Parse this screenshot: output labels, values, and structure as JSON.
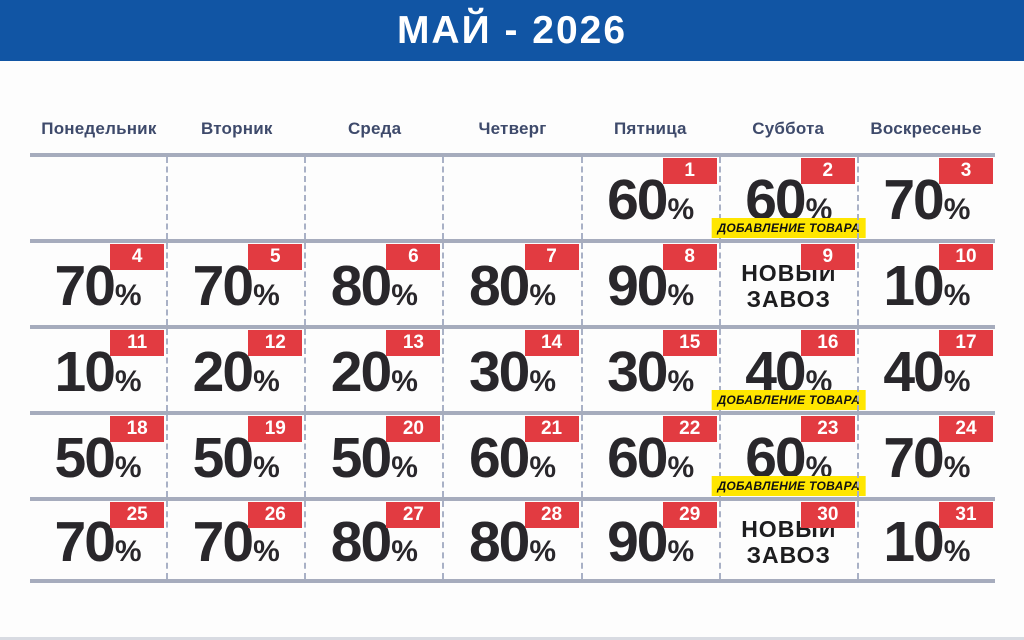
{
  "header": {
    "title": "МАЙ - 2026"
  },
  "weekdays": [
    "Понедельник",
    "Вторник",
    "Среда",
    "Четверг",
    "Пятница",
    "Суббота",
    "Воскресенье"
  ],
  "labels": {
    "percent": "%",
    "promo": "ДОБАВЛЕНИЕ ТОВАРА",
    "new_arrival_line1": "НОВЫЙ",
    "new_arrival_line2": "ЗАВОЗ"
  },
  "colors": {
    "page_bg": "#FDFDFD",
    "header_bg": "#1155A4",
    "header_text": "#FFFFFF",
    "weekday_text": "#3E4A6B",
    "badge_bg": "#E23B41",
    "badge_text": "#FFFFFF",
    "promo_bg": "#FFE600",
    "promo_text": "#111111",
    "row_line": "#A6ACBD",
    "col_dash": "#A9B1C6",
    "value_text": "#29272B"
  },
  "calendar": {
    "weeks": [
      [
        null,
        null,
        null,
        null,
        {
          "day": 1,
          "type": "discount",
          "discount": 60,
          "promo": false
        },
        {
          "day": 2,
          "type": "discount",
          "discount": 60,
          "promo": true
        },
        {
          "day": 3,
          "type": "discount",
          "discount": 70,
          "promo": false
        }
      ],
      [
        {
          "day": 4,
          "type": "discount",
          "discount": 70,
          "promo": false
        },
        {
          "day": 5,
          "type": "discount",
          "discount": 70,
          "promo": false
        },
        {
          "day": 6,
          "type": "discount",
          "discount": 80,
          "promo": false
        },
        {
          "day": 7,
          "type": "discount",
          "discount": 80,
          "promo": false
        },
        {
          "day": 8,
          "type": "discount",
          "discount": 90,
          "promo": false
        },
        {
          "day": 9,
          "type": "new_arrival",
          "promo": false
        },
        {
          "day": 10,
          "type": "discount",
          "discount": 10,
          "promo": false
        }
      ],
      [
        {
          "day": 11,
          "type": "discount",
          "discount": 10,
          "promo": false
        },
        {
          "day": 12,
          "type": "discount",
          "discount": 20,
          "promo": false
        },
        {
          "day": 13,
          "type": "discount",
          "discount": 20,
          "promo": false
        },
        {
          "day": 14,
          "type": "discount",
          "discount": 30,
          "promo": false
        },
        {
          "day": 15,
          "type": "discount",
          "discount": 30,
          "promo": false
        },
        {
          "day": 16,
          "type": "discount",
          "discount": 40,
          "promo": true
        },
        {
          "day": 17,
          "type": "discount",
          "discount": 40,
          "promo": false
        }
      ],
      [
        {
          "day": 18,
          "type": "discount",
          "discount": 50,
          "promo": false
        },
        {
          "day": 19,
          "type": "discount",
          "discount": 50,
          "promo": false
        },
        {
          "day": 20,
          "type": "discount",
          "discount": 50,
          "promo": false
        },
        {
          "day": 21,
          "type": "discount",
          "discount": 60,
          "promo": false
        },
        {
          "day": 22,
          "type": "discount",
          "discount": 60,
          "promo": false
        },
        {
          "day": 23,
          "type": "discount",
          "discount": 60,
          "promo": true
        },
        {
          "day": 24,
          "type": "discount",
          "discount": 70,
          "promo": false
        }
      ],
      [
        {
          "day": 25,
          "type": "discount",
          "discount": 70,
          "promo": false
        },
        {
          "day": 26,
          "type": "discount",
          "discount": 70,
          "promo": false
        },
        {
          "day": 27,
          "type": "discount",
          "discount": 80,
          "promo": false
        },
        {
          "day": 28,
          "type": "discount",
          "discount": 80,
          "promo": false
        },
        {
          "day": 29,
          "type": "discount",
          "discount": 90,
          "promo": false
        },
        {
          "day": 30,
          "type": "new_arrival",
          "promo": false
        },
        {
          "day": 31,
          "type": "discount",
          "discount": 10,
          "promo": false
        }
      ]
    ]
  }
}
